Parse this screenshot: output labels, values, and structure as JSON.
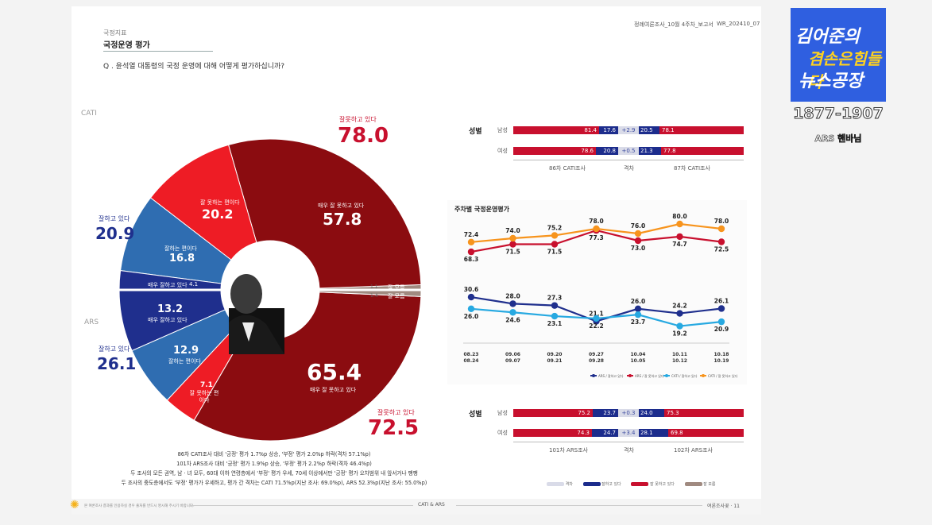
{
  "header": {
    "section": "국정지표",
    "title": "국정운영 평가",
    "question": "Q . 윤석열 대통령의 국정 운영에 대해 어떻게 평가하십니까?",
    "doc_id": "정례여론조사_10월 4주차_보고서",
    "doc_code": "WR_202410_07"
  },
  "logo": {
    "line1": "김어준의",
    "line2": "겸손은힘들다",
    "line3": "뉴스공장",
    "range": "1877-1907",
    "sub": "ARS 핸바님",
    "colors": {
      "bg": "#2f5fe0",
      "accent": "#ffd21e"
    }
  },
  "donut": {
    "cati_label": "CATI",
    "ars_label": "ARS",
    "cati_bad_total_label": "잘못하고 있다",
    "cati_bad_total": "78.0",
    "cati_good_total_label": "잘하고 있다",
    "cati_good_total": "20.9",
    "ars_bad_total_label": "잘못하고 있다",
    "ars_bad_total": "72.5",
    "ars_good_total_label": "잘하고 있다",
    "ars_good_total": "26.1",
    "cati_segments": [
      {
        "label": "매우 잘 못하고 있다",
        "value": 57.8,
        "text": "57.8"
      },
      {
        "label": "잘 못하는 편이다",
        "value": 20.2,
        "text": "20.2"
      },
      {
        "label": "잘하는 편이다",
        "value": 16.8,
        "text": "16.8"
      },
      {
        "label": "매우 잘하고 있다",
        "value": 4.1,
        "text": "4.1"
      },
      {
        "label": "잘 모름",
        "value": 1.1,
        "text": "1.1"
      }
    ],
    "ars_segments": [
      {
        "label": "매우 잘하고 있다",
        "value": 13.2,
        "text": "13.2"
      },
      {
        "label": "잘하는 편이다",
        "value": 12.9,
        "text": "12.9"
      },
      {
        "label": "잘 못하는 편이다",
        "value": 7.1,
        "text": "7.1"
      },
      {
        "label": "매우 잘 못하고 있다",
        "value": 65.4,
        "text": "65.4"
      },
      {
        "label": "잘 모름",
        "value": 1.4,
        "text": "1.4"
      }
    ],
    "colors": {
      "dark_red": "#8b0c10",
      "red": "#ee1c25",
      "blue": "#2f6db1",
      "navy": "#1f2f8d",
      "gray": "#a08a80"
    }
  },
  "notes": [
    "86차 CATI조사 대비 '긍정' 평가 1.7%p 상승, '부정' 평가 2.0%p 하락(격차 57.1%p)",
    "101차 ARS조사 대비 '긍정' 평가 1.9%p 상승, '부정' 평가 2.2%p 하락(격차 46.4%p)",
    "두 조사의 모든 권역, 남 · 녀 모두, 60대 이하 연령층에서 '부정' 평가 우세, 70세 이상에서만 '긍정' 평가 오차범위 내 앞서거나 팽팽",
    "두 조사의 중도층에서도 '부정' 평가가 우세하고, 평가 간 격차는 CATI 71.5%p(지난 조사: 69.0%p), ARS 52.3%p(지난 조사: 55.0%p)"
  ],
  "gender_cati": {
    "section": "성별",
    "rows": [
      {
        "label": "남성",
        "left_bad": "81.4",
        "left_good": "17.6",
        "diff": "+2.9",
        "right_good": "20.5",
        "right_bad": "78.1"
      },
      {
        "label": "여성",
        "left_bad": "78.6",
        "left_good": "20.8",
        "diff": "+0.5",
        "right_good": "21.3",
        "right_bad": "77.8"
      }
    ],
    "foot_left": "86차 CATI조사",
    "foot_mid": "격차",
    "foot_right": "87차 CATI조사"
  },
  "gender_ars": {
    "section": "성별",
    "rows": [
      {
        "label": "남성",
        "left_bad": "75.2",
        "left_good": "23.7",
        "diff": "+0.3",
        "right_good": "24.0",
        "right_bad": "75.3"
      },
      {
        "label": "여성",
        "left_bad": "74.3",
        "left_good": "24.7",
        "diff": "+3.4",
        "right_good": "28.1",
        "right_bad": "69.8"
      }
    ],
    "foot_left": "101차 ARS조사",
    "foot_mid": "격차",
    "foot_right": "102차 ARS조사"
  },
  "bottom_legend": [
    "격차",
    "잘하고 있다",
    "잘 못하고 있다",
    "잘 모름"
  ],
  "chart_data": {
    "type": "line",
    "title": "주차별 국정운영평가",
    "categories": [
      "08.23\n08.24",
      "09.06\n09.07",
      "09.20\n09.21",
      "09.27\n09.28",
      "10.04\n10.05",
      "10.11\n10.12",
      "10.18\n10.19"
    ],
    "series": [
      {
        "name": "ARS / 잘하고 있다",
        "color": "#1f2f8d",
        "values": [
          30.6,
          28.0,
          27.3,
          21.1,
          26.0,
          24.2,
          26.1
        ]
      },
      {
        "name": "ARS / 잘 못하고 있다",
        "color": "#c8102e",
        "values": [
          68.3,
          71.5,
          71.5,
          77.3,
          73.0,
          74.7,
          72.5
        ]
      },
      {
        "name": "CATI / 잘하고 있다",
        "color": "#27a9e1",
        "values": [
          26.0,
          24.6,
          23.1,
          22.2,
          23.7,
          19.2,
          20.9
        ]
      },
      {
        "name": "CATI / 잘 못하고 있다",
        "color": "#f7941d",
        "values": [
          72.4,
          74.0,
          75.2,
          78.0,
          76.0,
          80.0,
          78.0
        ]
      }
    ],
    "legend": [
      "ARS / 잘하고 있다",
      "ARS / 잘 못하고 있다",
      "CATI / 잘하고 있다",
      "CATI / 잘 못하고 있다"
    ],
    "ylim": [
      0,
      100
    ]
  },
  "footer": {
    "left": "본 여론조사 결과를 인용하실 경우 출처를 반드시 명시해 주시기 바랍니다.",
    "center": "CATI & ARS",
    "right": "여론조사꽃 · 11"
  }
}
